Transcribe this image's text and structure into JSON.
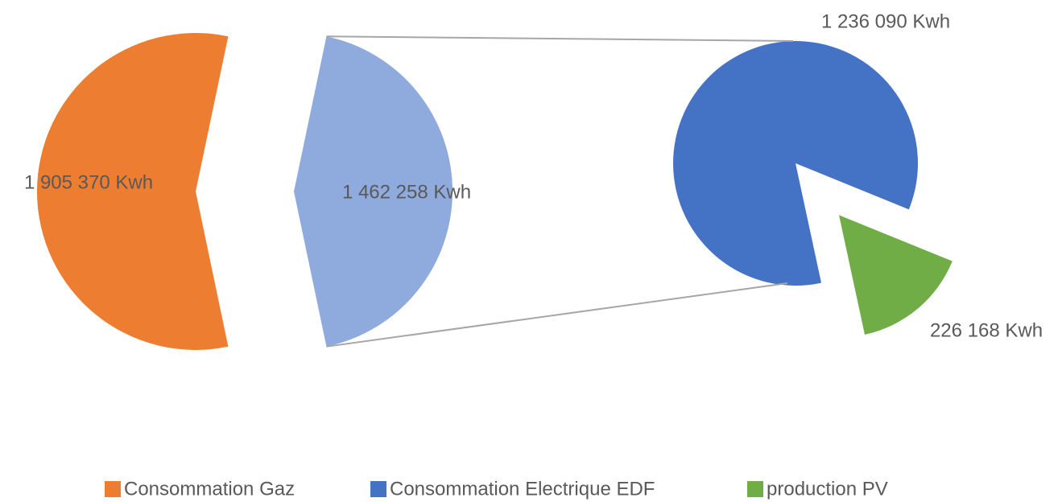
{
  "chart_data": {
    "type": "pie_of_pie",
    "categories": [
      "Consommation Gaz",
      "Consommation Electrique EDF",
      "production PV"
    ],
    "values": [
      1905370,
      1236090,
      226168
    ],
    "value_labels": [
      "1 905 370 Kwh",
      "1 236 090 Kwh",
      "226 168 Kwh"
    ],
    "colors": [
      "#ED7D31",
      "#4472C4",
      "#70AD47"
    ],
    "secondary": [
      1,
      2
    ],
    "other_value": 1462258,
    "other_label": "1 462 258 Kwh",
    "other_color": "#8FAADC",
    "legend": "bottom"
  }
}
